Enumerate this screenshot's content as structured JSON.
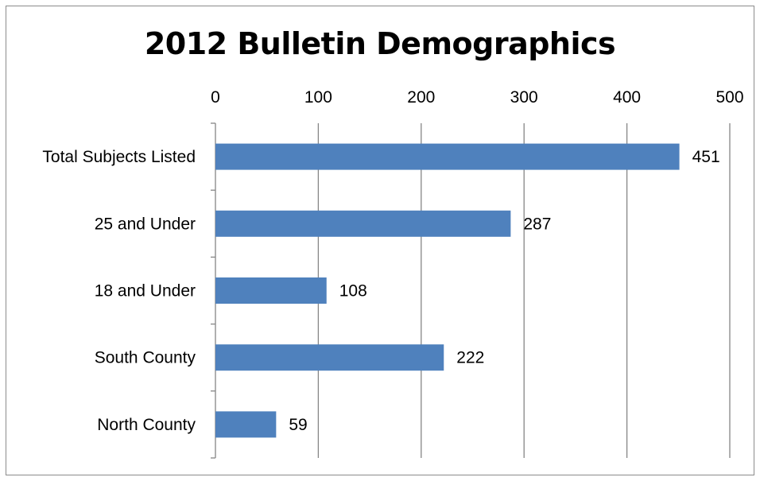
{
  "chart_data": {
    "type": "bar",
    "orientation": "horizontal",
    "title": "2012 Bulletin Demographics",
    "categories": [
      "Total Subjects Listed",
      "25 and Under",
      "18 and Under",
      "South County",
      "North County"
    ],
    "values": [
      451,
      287,
      108,
      222,
      59
    ],
    "xlim": [
      0,
      500
    ],
    "x_ticks": [
      0,
      100,
      200,
      300,
      400,
      500
    ],
    "x_axis_position": "top",
    "grid": true,
    "legend": "none",
    "bar_color": "#4f81bd",
    "data_labels": true
  }
}
